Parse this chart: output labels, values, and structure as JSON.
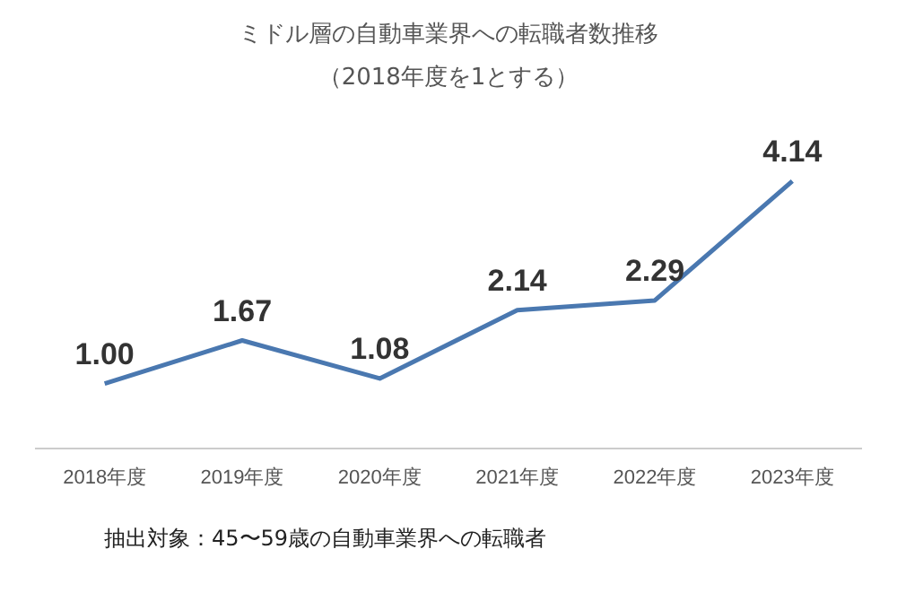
{
  "chart_data": {
    "type": "line",
    "title": "ミドル層の自動車業界への転職者数推移",
    "subtitle": "（2018年度を1とする）",
    "categories": [
      "2018年度",
      "2019年度",
      "2020年度",
      "2021年度",
      "2022年度",
      "2023年度"
    ],
    "series": [
      {
        "color": "#4a78b0",
        "values": [
          1.0,
          1.67,
          1.08,
          2.14,
          2.29,
          4.14
        ],
        "value_labels": [
          "1.00",
          "1.67",
          "1.08",
          "2.14",
          "2.29",
          "4.14"
        ]
      }
    ],
    "marker": "none",
    "line_style": "solid",
    "legend": false,
    "grid": false,
    "tick_labels": "x",
    "annotations": [
      "抽出対象：45〜59歳の自動車業界への転職者"
    ]
  }
}
